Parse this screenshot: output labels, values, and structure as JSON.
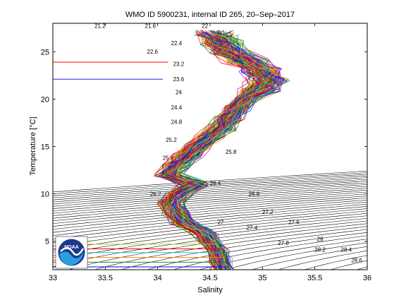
{
  "chart_data": {
    "type": "line",
    "title": "WMO ID 5900231, internal ID 265, 20–Sep–2017",
    "xlabel": "Salinity",
    "ylabel": "Temperature [°C]",
    "xlim": [
      33,
      36
    ],
    "ylim": [
      2,
      28
    ],
    "x_ticks": [
      "33",
      "33.5",
      "34",
      "34.5",
      "35",
      "35.5",
      "36"
    ],
    "x_tick_values": [
      33,
      33.5,
      34,
      34.5,
      35,
      35.5,
      36
    ],
    "y_ticks": [
      "5",
      "10",
      "15",
      "20",
      "25"
    ],
    "y_tick_values": [
      5,
      10,
      15,
      20,
      25
    ],
    "grid": false,
    "density_contours": {
      "levels": [
        21,
        21.2,
        21.4,
        21.6,
        21.8,
        22,
        22.2,
        22.4,
        22.6,
        22.8,
        23,
        23.2,
        23.4,
        23.6,
        23.8,
        24,
        24.2,
        24.4,
        24.6,
        24.8,
        25,
        25.2,
        25.4,
        25.6,
        25.8,
        26,
        26.2,
        26.4,
        26.6,
        26.8,
        27,
        27.2,
        27.4,
        27.6,
        27.8,
        28,
        28.2,
        28.4,
        28.6
      ],
      "labels": [
        {
          "text": "21.2",
          "s": 33.45,
          "t": 27.5
        },
        {
          "text": "21.6",
          "s": 33.93,
          "t": 27.5
        },
        {
          "text": "22",
          "s": 34.45,
          "t": 27.5
        },
        {
          "text": "22.4",
          "s": 34.18,
          "t": 25.7
        },
        {
          "text": "22.6",
          "s": 33.95,
          "t": 24.8
        },
        {
          "text": "23.2",
          "s": 34.2,
          "t": 23.5
        },
        {
          "text": "23.6",
          "s": 34.2,
          "t": 21.9
        },
        {
          "text": "24",
          "s": 34.2,
          "t": 20.5
        },
        {
          "text": "24.4",
          "s": 34.18,
          "t": 18.9
        },
        {
          "text": "24.8",
          "s": 34.18,
          "t": 17.4
        },
        {
          "text": "25.2",
          "s": 34.13,
          "t": 15.5
        },
        {
          "text": "25.4",
          "s": 34.7,
          "t": 16.6
        },
        {
          "text": "25.6",
          "s": 34.1,
          "t": 13.6
        },
        {
          "text": "25.8",
          "s": 34.7,
          "t": 14.2
        },
        {
          "text": "26.2",
          "s": 33.98,
          "t": 9.8
        },
        {
          "text": "26.4",
          "s": 34.55,
          "t": 10.9
        },
        {
          "text": "26.8",
          "s": 34.92,
          "t": 9.8
        },
        {
          "text": "27",
          "s": 34.6,
          "t": 6.8
        },
        {
          "text": "27.2",
          "s": 35.05,
          "t": 7.9
        },
        {
          "text": "27.4",
          "s": 34.9,
          "t": 6.2
        },
        {
          "text": "27.6",
          "s": 35.3,
          "t": 6.8
        },
        {
          "text": "27.8",
          "s": 35.2,
          "t": 4.6
        },
        {
          "text": "28",
          "s": 35.55,
          "t": 5.0
        },
        {
          "text": "28.2",
          "s": 35.55,
          "t": 3.9
        },
        {
          "text": "28.4",
          "s": 35.8,
          "t": 3.9
        },
        {
          "text": "28.6",
          "s": 35.9,
          "t": 2.8
        }
      ]
    },
    "series_note_colors": [
      "#0000ff",
      "#008000",
      "#ff0000",
      "#00bfbf",
      "#bf00bf",
      "#bfbf00",
      "#404040",
      "#ff8000"
    ],
    "profiles": {
      "count": 120,
      "centerline": [
        {
          "t": 2.0,
          "s": 34.62
        },
        {
          "t": 3.0,
          "s": 34.6
        },
        {
          "t": 4.0,
          "s": 34.57
        },
        {
          "t": 5.0,
          "s": 34.5
        },
        {
          "t": 6.0,
          "s": 34.43
        },
        {
          "t": 7.0,
          "s": 34.25
        },
        {
          "t": 8.0,
          "s": 34.18
        },
        {
          "t": 9.0,
          "s": 34.13
        },
        {
          "t": 10.0,
          "s": 34.2
        },
        {
          "t": 11.0,
          "s": 34.35
        },
        {
          "t": 12.0,
          "s": 34.1
        },
        {
          "t": 13.0,
          "s": 34.18
        },
        {
          "t": 14.0,
          "s": 34.28
        },
        {
          "t": 15.0,
          "s": 34.38
        },
        {
          "t": 16.0,
          "s": 34.5
        },
        {
          "t": 17.0,
          "s": 34.6
        },
        {
          "t": 18.0,
          "s": 34.68
        },
        {
          "t": 19.0,
          "s": 34.75
        },
        {
          "t": 20.0,
          "s": 34.85
        },
        {
          "t": 21.0,
          "s": 34.98
        },
        {
          "t": 22.0,
          "s": 35.05
        },
        {
          "t": 23.0,
          "s": 35.0
        },
        {
          "t": 24.0,
          "s": 34.85
        },
        {
          "t": 25.0,
          "s": 34.7
        },
        {
          "t": 26.0,
          "s": 34.6
        },
        {
          "t": 27.0,
          "s": 34.55
        }
      ]
    },
    "surface_lines": [
      {
        "t": 2.3,
        "s_start": 33.0,
        "s_end": 34.68,
        "color": "#0000ff"
      },
      {
        "t": 2.8,
        "s_start": 33.0,
        "s_end": 34.66,
        "color": "#008000"
      },
      {
        "t": 3.3,
        "s_start": 33.0,
        "s_end": 34.64,
        "color": "#ff8000"
      },
      {
        "t": 3.8,
        "s_start": 33.0,
        "s_end": 34.62,
        "color": "#00bfbf"
      },
      {
        "t": 4.2,
        "s_start": 33.0,
        "s_end": 34.6,
        "color": "#ff0000"
      },
      {
        "t": 4.7,
        "s_start": 33.0,
        "s_end": 34.58,
        "color": "#bfbf00"
      }
    ],
    "surface_outliers": [
      {
        "t": 22.1,
        "s_start": 33.0,
        "s_end": 34.05,
        "color": "#0000ff"
      },
      {
        "t": 23.9,
        "s_start": 33.0,
        "s_end": 34.1,
        "color": "#ff0000"
      }
    ]
  },
  "logo": {
    "text": "NOAA",
    "icon": "noaa-logo-icon"
  }
}
